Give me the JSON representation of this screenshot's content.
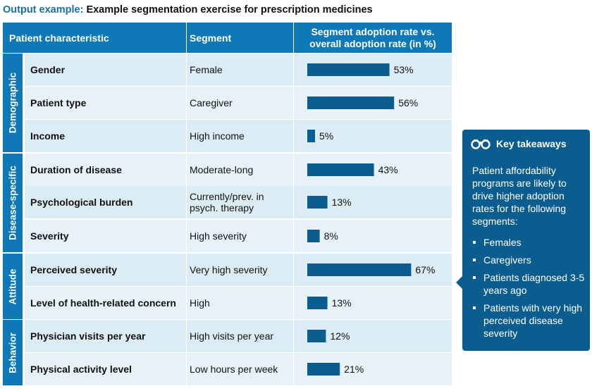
{
  "title": {
    "prefix": "Output example:",
    "main": "Example segmentation exercise for prescription medicines"
  },
  "table": {
    "headers": {
      "characteristic": "Patient characteristic",
      "segment": "Segment",
      "rate": "Segment adoption rate vs. overall adoption rate (in %)"
    },
    "groups": [
      {
        "label": "Demographic",
        "rows": [
          0,
          1,
          2
        ]
      },
      {
        "label": "Disease-specific",
        "rows": [
          3,
          4,
          5
        ]
      },
      {
        "label": "Attitude",
        "rows": [
          6,
          7
        ]
      },
      {
        "label": "Behavior",
        "rows": [
          8,
          9
        ]
      }
    ],
    "rows": [
      {
        "characteristic": "Gender",
        "segment": "Female"
      },
      {
        "characteristic": "Patient type",
        "segment": "Caregiver"
      },
      {
        "characteristic": "Income",
        "segment": "High income"
      },
      {
        "characteristic": "Duration of disease",
        "segment": "Moderate-long"
      },
      {
        "characteristic": "Psychological burden",
        "segment": "Currently/prev. in psych. therapy"
      },
      {
        "characteristic": "Severity",
        "segment": "High severity"
      },
      {
        "characteristic": "Perceived severity",
        "segment": "Very high severity"
      },
      {
        "characteristic": "Level of health-related concern",
        "segment": "High"
      },
      {
        "characteristic": "Physician visits per year",
        "segment": "High visits per year"
      },
      {
        "characteristic": "Physical activity level",
        "segment": "Low hours per week"
      }
    ]
  },
  "chart_data": {
    "type": "bar",
    "orientation": "horizontal",
    "categories": [
      "Gender",
      "Patient type",
      "Income",
      "Duration of disease",
      "Psychological burden",
      "Severity",
      "Perceived severity",
      "Level of health-related concern",
      "Physician visits per year",
      "Physical activity level"
    ],
    "values": [
      53,
      56,
      5,
      43,
      13,
      8,
      67,
      13,
      12,
      21
    ],
    "value_suffix": "%",
    "bar_color": "#0c5d8f"
  },
  "takeaways": {
    "icon": "binoculars-icon",
    "title": "Key takeaways",
    "intro": "Patient affordability programs are likely to drive higher adoption rates for the following segments:",
    "items": [
      "Females",
      "Caregivers",
      "Patients diagnosed 3-5 years ago",
      "Patients with very high perceived disease severity"
    ]
  },
  "colors": {
    "header_bg": "#0f79b8",
    "row_bg": "#dcecf5",
    "row_alt_bg": "#e7f2f8",
    "takeaway_bg": "#0c5d8f",
    "title_prefix": "#1a6fa5"
  }
}
